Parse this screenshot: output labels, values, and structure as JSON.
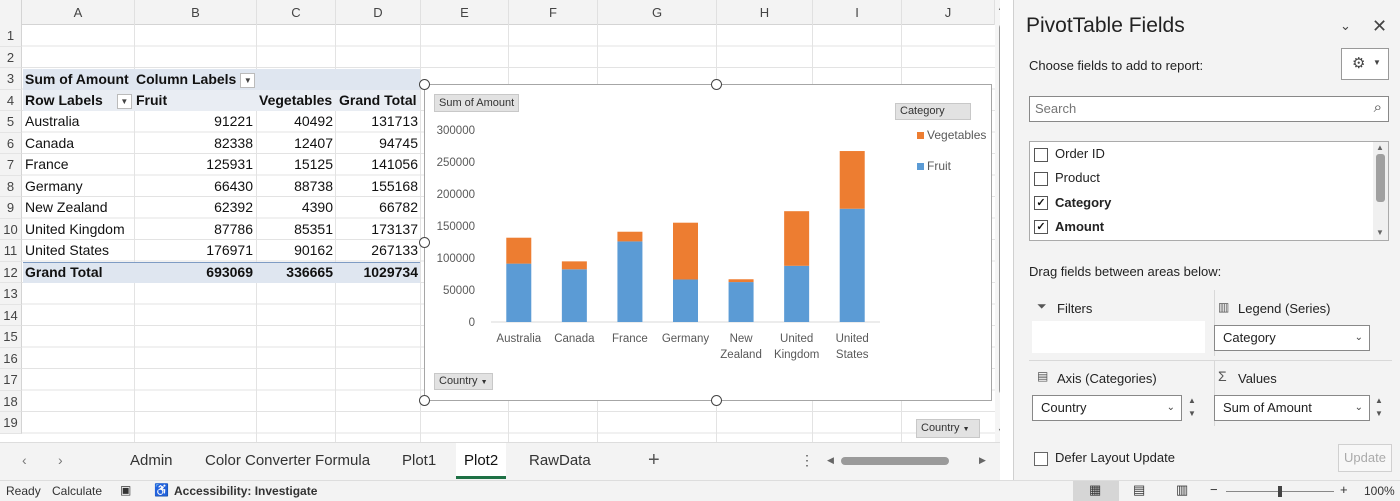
{
  "columns": [
    "A",
    "B",
    "C",
    "D",
    "E",
    "F",
    "G",
    "H",
    "I",
    "J"
  ],
  "rows": [
    "1",
    "2",
    "3",
    "4",
    "5",
    "6",
    "7",
    "8",
    "9",
    "10",
    "11",
    "12",
    "13",
    "14",
    "15",
    "16",
    "17",
    "18",
    "19"
  ],
  "pivot": {
    "sum_label": "Sum of Amount",
    "col_labels": "Column Labels",
    "row_labels": "Row Labels",
    "headers": [
      "Fruit",
      "Vegetables",
      "Grand Total"
    ],
    "data": [
      {
        "country": "Australia",
        "fruit": "91221",
        "veg": "40492",
        "total": "131713"
      },
      {
        "country": "Canada",
        "fruit": "82338",
        "veg": "12407",
        "total": "94745"
      },
      {
        "country": "France",
        "fruit": "125931",
        "veg": "15125",
        "total": "141056"
      },
      {
        "country": "Germany",
        "fruit": "66430",
        "veg": "88738",
        "total": "155168"
      },
      {
        "country": "New Zealand",
        "fruit": "62392",
        "veg": "4390",
        "total": "66782"
      },
      {
        "country": "United Kingdom",
        "fruit": "87786",
        "veg": "85351",
        "total": "173137"
      },
      {
        "country": "United States",
        "fruit": "176971",
        "veg": "90162",
        "total": "267133"
      }
    ],
    "grand": {
      "label": "Grand Total",
      "fruit": "693069",
      "veg": "336665",
      "total": "1029734"
    }
  },
  "chart_data": {
    "type": "bar",
    "stacked": true,
    "categories": [
      "Australia",
      "Canada",
      "France",
      "Germany",
      "New Zealand",
      "United Kingdom",
      "United States"
    ],
    "series": [
      {
        "name": "Fruit",
        "values": [
          91221,
          82338,
          125931,
          66430,
          62392,
          87786,
          176971
        ],
        "color": "#5b9bd5"
      },
      {
        "name": "Vegetables",
        "values": [
          40492,
          12407,
          15125,
          88738,
          4390,
          85351,
          90162
        ],
        "color": "#ed7d31"
      }
    ],
    "ylim": [
      0,
      300000
    ],
    "yticks": [
      "0",
      "50000",
      "100000",
      "150000",
      "200000",
      "250000",
      "300000"
    ],
    "legend_title": "Category",
    "legend_position": "right",
    "value_field_button": "Sum of Amount",
    "axis_field_button": "Country"
  },
  "extra_country_button": "Country",
  "tabs": [
    "Admin",
    "Color Converter Formula",
    "Plot1",
    "Plot2",
    "RawData"
  ],
  "active_tab": "Plot2",
  "status": {
    "ready": "Ready",
    "calculate": "Calculate",
    "accessibility": "Accessibility: Investigate",
    "zoom": "100%"
  },
  "pane": {
    "title": "PivotTable Fields",
    "choose": "Choose fields to add to report:",
    "search_placeholder": "Search",
    "fields": [
      {
        "name": "Order ID",
        "checked": false
      },
      {
        "name": "Product",
        "checked": false
      },
      {
        "name": "Category",
        "checked": true
      },
      {
        "name": "Amount",
        "checked": true
      }
    ],
    "drag": "Drag fields between areas below:",
    "filters": "Filters",
    "legend": "Legend (Series)",
    "legend_value": "Category",
    "axis": "Axis (Categories)",
    "axis_value": "Country",
    "values": "Values",
    "values_value": "Sum of Amount",
    "defer": "Defer Layout Update",
    "update": "Update"
  },
  "colors": {
    "fruit": "#5b9bd5",
    "vegetables": "#ed7d31",
    "active_tab": "#1e7145"
  }
}
